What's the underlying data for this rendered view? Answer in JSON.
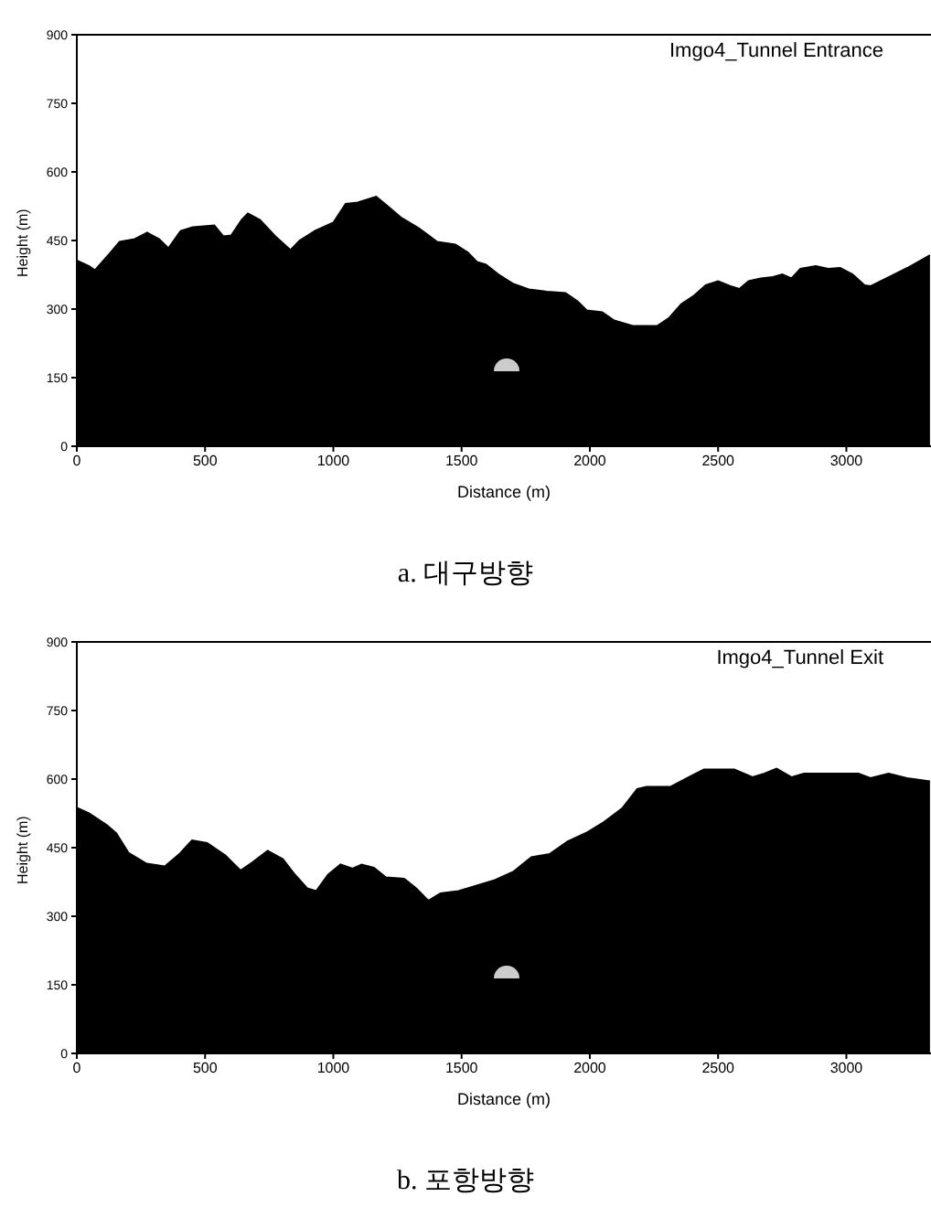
{
  "chart_data": [
    {
      "type": "area",
      "title": "Imgo4_Tunnel Entrance",
      "xlabel": "Distance (m)",
      "ylabel": "Height (m)",
      "annotations": [
        "a. 대구방향"
      ],
      "series": [
        {
          "color": "#000000",
          "x": [
            0,
            48,
            71,
            131,
            167,
            226,
            274,
            321,
            357,
            405,
            452,
            536,
            571,
            602,
            643,
            667,
            714,
            774,
            833,
            869,
            929,
            1000,
            1048,
            1095,
            1167,
            1214,
            1262,
            1333,
            1405,
            1476,
            1524,
            1560,
            1595,
            1643,
            1702,
            1762,
            1833,
            1905,
            1952,
            1988,
            2048,
            2095,
            2167,
            2262,
            2310,
            2357,
            2405,
            2452,
            2500,
            2548,
            2583,
            2619,
            2667,
            2714,
            2750,
            2786,
            2821,
            2881,
            2929,
            2976,
            3024,
            3071,
            3095,
            3167,
            3238,
            3326
          ],
          "values": [
            406,
            394,
            385,
            423,
            447,
            453,
            467,
            453,
            433,
            471,
            479,
            483,
            459,
            461,
            495,
            509,
            495,
            459,
            429,
            450,
            471,
            489,
            530,
            533,
            546,
            524,
            501,
            477,
            447,
            441,
            424,
            403,
            397,
            376,
            355,
            343,
            338,
            335,
            317,
            297,
            293,
            275,
            263,
            263,
            281,
            311,
            329,
            352,
            361,
            350,
            344,
            361,
            367,
            370,
            376,
            367,
            388,
            394,
            388,
            390,
            376,
            352,
            350,
            370,
            390,
            418
          ]
        }
      ],
      "xlim": [
        0,
        3330
      ],
      "xticks": [
        0,
        500,
        1000,
        1500,
        2000,
        2500,
        3000
      ],
      "ylim": [
        0,
        900
      ],
      "yticks": [
        0,
        150,
        300,
        450,
        600,
        750,
        900
      ],
      "grid": false,
      "legend": false
    },
    {
      "type": "area",
      "title": "Imgo4_Tunnel Exit",
      "xlabel": "Distance (m)",
      "ylabel": "Height (m)",
      "annotations": [
        "b. 포항방향"
      ],
      "series": [
        {
          "color": "#000000",
          "x": [
            0,
            47,
            118,
            154,
            201,
            272,
            343,
            402,
            449,
            508,
            579,
            638,
            685,
            744,
            803,
            850,
            898,
            933,
            980,
            1028,
            1075,
            1110,
            1158,
            1205,
            1276,
            1323,
            1370,
            1418,
            1488,
            1559,
            1630,
            1701,
            1772,
            1843,
            1914,
            1985,
            2055,
            2126,
            2185,
            2221,
            2315,
            2386,
            2445,
            2563,
            2634,
            2681,
            2728,
            2787,
            2835,
            3047,
            3094,
            3165,
            3236,
            3326
          ],
          "values": [
            537,
            525,
            499,
            481,
            439,
            415,
            409,
            437,
            466,
            460,
            433,
            400,
            418,
            443,
            425,
            391,
            361,
            355,
            391,
            413,
            404,
            413,
            406,
            385,
            382,
            361,
            334,
            350,
            355,
            367,
            379,
            397,
            429,
            436,
            464,
            482,
            506,
            536,
            578,
            583,
            583,
            604,
            621,
            621,
            604,
            612,
            623,
            604,
            612,
            612,
            602,
            612,
            602,
            595
          ]
        }
      ],
      "xlim": [
        0,
        3330
      ],
      "xticks": [
        0,
        500,
        1000,
        1500,
        2000,
        2500,
        3000
      ],
      "ylim": [
        0,
        900
      ],
      "yticks": [
        0,
        150,
        300,
        450,
        600,
        750,
        900
      ],
      "grid": false,
      "legend": false
    }
  ]
}
